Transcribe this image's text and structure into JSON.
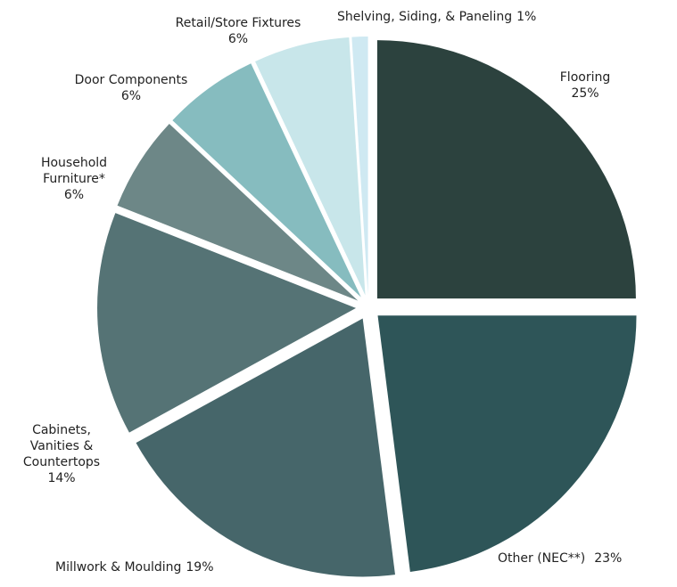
{
  "chart_data": {
    "type": "pie",
    "categories": [
      "Flooring",
      "Other (NEC**)",
      "Millwork & Moulding",
      "Cabinets, Vanities & Countertops",
      "Household Furniture*",
      "Door Components",
      "Retail/Store Fixtures",
      "Shelving, Siding, & Paneling"
    ],
    "values": [
      25,
      23,
      19,
      14,
      6,
      6,
      6,
      1
    ],
    "value_labels": [
      "25%",
      "23%",
      "19%",
      "14%",
      "6%",
      "6%",
      "6%",
      "1%"
    ],
    "colors": [
      "#2c423e",
      "#2e5558",
      "#46666a",
      "#557375",
      "#6d8787",
      "#86bcbf",
      "#c8e6ea",
      "#cfe9f2"
    ]
  }
}
